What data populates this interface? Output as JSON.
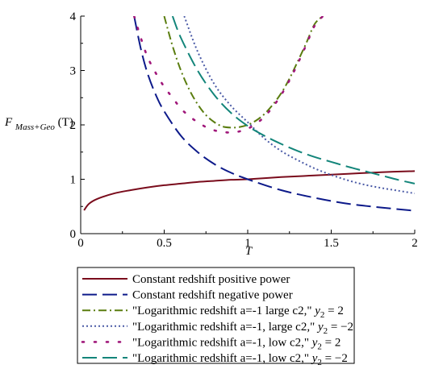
{
  "chart_data": {
    "type": "line",
    "title": "",
    "xlabel": "T",
    "ylabel": "F_{Mass+Geo}(T)",
    "ylabel_main": "F",
    "ylabel_sub": "Mass+Geo",
    "ylabel_arg": "(T)",
    "xlim": [
      0,
      2
    ],
    "ylim": [
      0,
      4
    ],
    "x_ticks": [
      0,
      0.5,
      1,
      1.5,
      2
    ],
    "x_tick_labels": [
      "0",
      "0.5",
      "1",
      "1.5",
      "2"
    ],
    "y_ticks": [
      0,
      1,
      2,
      3,
      4
    ],
    "y_tick_labels": [
      "0",
      "1",
      "2",
      "3",
      "4"
    ],
    "grid": false,
    "legend_position": "below",
    "series": [
      {
        "name": "Constant redshift positive power",
        "color": "#7a0c1c",
        "dash": "solid",
        "x": [
          0.02,
          0.05,
          0.1,
          0.2,
          0.3,
          0.4,
          0.5,
          0.6,
          0.7,
          0.8,
          0.9,
          1.0,
          1.2,
          1.4,
          1.6,
          1.8,
          2.0
        ],
        "y": [
          0.43,
          0.55,
          0.64,
          0.74,
          0.8,
          0.85,
          0.89,
          0.92,
          0.95,
          0.97,
          0.99,
          1.0,
          1.04,
          1.07,
          1.1,
          1.13,
          1.15
        ]
      },
      {
        "name": "Constant redshift negative power",
        "color": "#0d1a8a",
        "dash": "longdash",
        "x": [
          0.32,
          0.36,
          0.4,
          0.45,
          0.5,
          0.6,
          0.7,
          0.8,
          0.9,
          1.0,
          1.2,
          1.4,
          1.6,
          1.8,
          2.0
        ],
        "y": [
          4.0,
          3.4,
          2.95,
          2.55,
          2.25,
          1.8,
          1.5,
          1.28,
          1.12,
          1.0,
          0.8,
          0.66,
          0.55,
          0.48,
          0.42
        ]
      },
      {
        "name": "\"Logarithmic redshift a=-1 large c2,\"",
        "eq": "y_2 = 2",
        "eq_var": "y",
        "eq_sub": "2",
        "eq_rhs": "= 2",
        "color": "#5a7d0f",
        "dash": "dashdot",
        "x": [
          0.5,
          0.55,
          0.6,
          0.65,
          0.7,
          0.75,
          0.8,
          0.85,
          0.9,
          0.95,
          1.0,
          1.05,
          1.1,
          1.15,
          1.2,
          1.25,
          1.3,
          1.35,
          1.4,
          1.45
        ],
        "y": [
          4.0,
          3.45,
          3.0,
          2.65,
          2.38,
          2.18,
          2.05,
          1.97,
          1.95,
          1.96,
          2.0,
          2.08,
          2.2,
          2.37,
          2.58,
          2.85,
          3.17,
          3.5,
          3.85,
          4.0
        ]
      },
      {
        "name": "\"Logarithmic redshift a=-1, large c2,\"",
        "eq": "y_2 = -2",
        "eq_var": "y",
        "eq_sub": "2",
        "eq_rhs": "= −2",
        "color": "#4a5aa6",
        "dash": "dotted",
        "x": [
          0.62,
          0.7,
          0.8,
          0.9,
          1.0,
          1.1,
          1.2,
          1.3,
          1.4,
          1.5,
          1.6,
          1.7,
          1.8,
          1.9,
          2.0
        ],
        "y": [
          4.0,
          3.35,
          2.75,
          2.35,
          2.05,
          1.75,
          1.52,
          1.35,
          1.2,
          1.08,
          0.98,
          0.9,
          0.84,
          0.79,
          0.74
        ]
      },
      {
        "name": "\"Logarithmic redshift a=-1, low c2,\"",
        "eq": "y_2 = 2",
        "eq_var": "y",
        "eq_sub": "2",
        "eq_rhs": "= 2",
        "color": "#a0177a",
        "dash": "sparse-dot",
        "x": [
          0.32,
          0.36,
          0.4,
          0.45,
          0.5,
          0.55,
          0.6,
          0.65,
          0.7,
          0.75,
          0.8,
          0.85,
          0.9,
          0.95,
          1.0,
          1.05,
          1.1,
          1.15,
          1.2,
          1.25,
          1.3,
          1.35,
          1.4,
          1.45
        ],
        "y": [
          4.0,
          3.6,
          3.25,
          2.95,
          2.7,
          2.5,
          2.3,
          2.16,
          2.05,
          1.96,
          1.9,
          1.87,
          1.86,
          1.88,
          1.93,
          2.02,
          2.15,
          2.33,
          2.55,
          2.82,
          3.13,
          3.47,
          3.82,
          4.0
        ]
      },
      {
        "name": "\"Logarithmic redshift a=-1, low c2,\"",
        "eq": "y_2 = -2",
        "eq_var": "y",
        "eq_sub": "2",
        "eq_rhs": "= −2",
        "color": "#13857a",
        "dash": "longdash",
        "x": [
          0.55,
          0.6,
          0.7,
          0.8,
          0.9,
          1.0,
          1.1,
          1.2,
          1.3,
          1.4,
          1.5,
          1.6,
          1.7,
          1.8,
          1.9,
          2.0
        ],
        "y": [
          4.0,
          3.6,
          3.0,
          2.55,
          2.22,
          1.98,
          1.8,
          1.65,
          1.52,
          1.41,
          1.32,
          1.23,
          1.15,
          1.07,
          0.99,
          0.92
        ]
      }
    ]
  }
}
